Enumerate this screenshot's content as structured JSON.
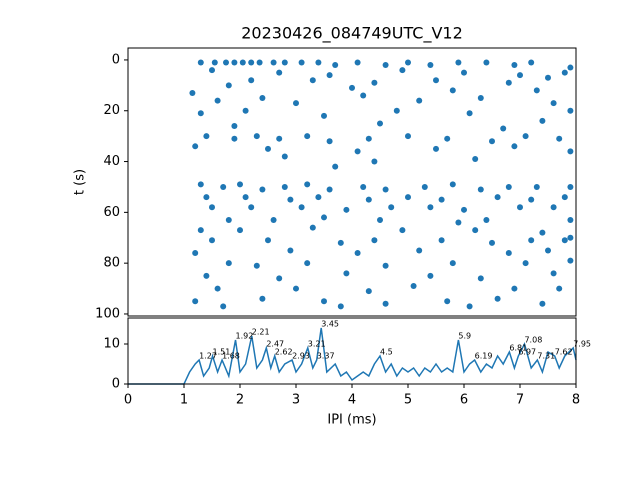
{
  "chart_data": [
    {
      "type": "scatter",
      "title": "20230426_084749UTC_V12",
      "y_label": "t (s)",
      "color": "#1f77b4",
      "xlim": [
        0,
        8
      ],
      "ylim": [
        100.8,
        -4.7
      ],
      "yticks": [
        0,
        20,
        40,
        60,
        80,
        100
      ],
      "x": [
        1.3,
        1.55,
        1.75,
        1.9,
        2.05,
        2.2,
        2.35,
        2.6,
        2.8,
        3.1,
        3.4,
        3.7,
        4.1,
        4.6,
        5.0,
        5.4,
        5.9,
        6.4,
        6.9,
        7.2,
        7.9,
        1.5,
        2.7,
        3.6,
        4.9,
        6.0,
        7.0,
        7.8,
        2.2,
        3.3,
        4.4,
        5.5,
        6.8,
        7.5,
        1.8,
        4.0,
        5.8,
        7.3,
        1.15,
        1.6,
        2.4,
        3.0,
        4.2,
        5.2,
        6.3,
        7.6,
        1.3,
        2.1,
        3.5,
        4.8,
        6.1,
        7.9,
        1.9,
        4.5,
        6.7,
        7.4,
        1.4,
        1.9,
        2.3,
        2.7,
        3.2,
        3.6,
        4.3,
        5.0,
        5.7,
        6.5,
        7.1,
        7.7,
        1.2,
        2.5,
        4.1,
        5.5,
        6.9,
        7.9,
        2.8,
        4.4,
        6.2,
        3.7,
        1.3,
        1.7,
        2.0,
        2.4,
        2.8,
        3.2,
        3.6,
        4.2,
        4.6,
        5.3,
        5.8,
        6.3,
        6.8,
        7.3,
        7.9,
        1.4,
        2.1,
        2.9,
        3.4,
        4.3,
        5.0,
        5.6,
        6.6,
        7.2,
        7.8,
        1.5,
        2.2,
        3.1,
        3.9,
        4.7,
        5.4,
        6.0,
        7.0,
        7.6,
        1.8,
        2.6,
        3.5,
        4.5,
        5.9,
        6.4,
        7.9,
        1.3,
        2.0,
        3.3,
        4.9,
        6.2,
        7.4,
        7.9,
        1.5,
        2.5,
        3.8,
        4.4,
        5.6,
        6.5,
        7.2,
        7.8,
        1.2,
        2.9,
        4.1,
        5.2,
        6.8,
        7.5,
        1.8,
        2.3,
        3.2,
        4.6,
        5.8,
        7.1,
        7.9,
        1.4,
        2.7,
        3.9,
        5.4,
        6.3,
        7.6,
        1.6,
        3.0,
        4.3,
        5.1,
        6.9,
        7.7,
        1.2,
        2.4,
        3.5,
        4.6,
        5.7,
        6.6,
        7.4,
        1.7,
        3.8,
        6.1
      ],
      "values": [
        1,
        1,
        1,
        1,
        1,
        1,
        1,
        1,
        1,
        1,
        1,
        2,
        1,
        2,
        1,
        2,
        1,
        1,
        2,
        1,
        3,
        4,
        5,
        6,
        4,
        5,
        6,
        5,
        8,
        8,
        9,
        8,
        9,
        7,
        10,
        11,
        12,
        12,
        13,
        16,
        15,
        17,
        14,
        16,
        15,
        17,
        21,
        20,
        22,
        20,
        21,
        20,
        26,
        25,
        27,
        24,
        30,
        31,
        30,
        31,
        30,
        32,
        31,
        30,
        31,
        32,
        30,
        31,
        34,
        35,
        36,
        35,
        34,
        36,
        38,
        40,
        39,
        42,
        49,
        50,
        49,
        51,
        50,
        49,
        51,
        50,
        51,
        50,
        49,
        51,
        50,
        50,
        50,
        54,
        54,
        55,
        54,
        55,
        54,
        55,
        54,
        55,
        54,
        58,
        58,
        58,
        59,
        58,
        58,
        59,
        58,
        58,
        63,
        63,
        62,
        63,
        64,
        63,
        63,
        67,
        67,
        66,
        67,
        67,
        68,
        70,
        71,
        71,
        72,
        71,
        71,
        72,
        71,
        71,
        76,
        75,
        76,
        75,
        76,
        75,
        80,
        81,
        80,
        81,
        80,
        80,
        79,
        85,
        86,
        84,
        85,
        86,
        84,
        90,
        90,
        91,
        89,
        90,
        90,
        95,
        94,
        95,
        96,
        95,
        94,
        96,
        97,
        97,
        97
      ]
    },
    {
      "type": "line",
      "x_label": "IPI (ms)",
      "color": "#1f77b4",
      "xlim": [
        0,
        8
      ],
      "xticks": [
        0,
        1,
        2,
        3,
        4,
        5,
        6,
        7,
        8
      ],
      "ylim": [
        0,
        16.5
      ],
      "yticks": [
        0,
        10
      ],
      "x": [
        0,
        1.0,
        1.1,
        1.2,
        1.27,
        1.35,
        1.45,
        1.51,
        1.6,
        1.68,
        1.8,
        1.92,
        2.0,
        2.1,
        2.21,
        2.3,
        2.4,
        2.47,
        2.55,
        2.62,
        2.7,
        2.8,
        2.93,
        3.0,
        3.1,
        3.21,
        3.3,
        3.37,
        3.45,
        3.55,
        3.7,
        3.8,
        3.9,
        4.0,
        4.1,
        4.2,
        4.3,
        4.4,
        4.5,
        4.6,
        4.7,
        4.8,
        4.9,
        5.0,
        5.1,
        5.2,
        5.3,
        5.4,
        5.5,
        5.6,
        5.7,
        5.8,
        5.9,
        6.0,
        6.1,
        6.19,
        6.3,
        6.4,
        6.5,
        6.6,
        6.7,
        6.81,
        6.9,
        6.97,
        7.08,
        7.2,
        7.31,
        7.4,
        7.5,
        7.62,
        7.7,
        7.8,
        7.95,
        8.0
      ],
      "values": [
        0,
        0,
        3,
        5,
        6,
        2,
        4,
        7,
        3,
        6,
        2,
        11,
        3,
        5,
        12,
        4,
        6,
        9,
        4,
        7,
        3,
        5,
        6,
        3,
        5,
        9,
        4,
        6,
        14,
        3,
        5,
        2,
        3,
        1,
        2,
        3,
        2,
        5,
        7,
        3,
        5,
        2,
        4,
        3,
        4,
        2,
        4,
        3,
        5,
        3,
        4,
        3,
        11,
        3,
        5,
        6,
        3,
        5,
        4,
        7,
        5,
        8,
        4,
        7,
        10,
        4,
        6,
        3,
        8,
        7,
        4,
        7,
        9,
        6
      ],
      "annotations": [
        {
          "x": 1.27,
          "y": 6
        },
        {
          "x": 1.51,
          "y": 7
        },
        {
          "x": 1.68,
          "y": 6
        },
        {
          "x": 1.92,
          "y": 11
        },
        {
          "x": 2.21,
          "y": 12
        },
        {
          "x": 2.47,
          "y": 9
        },
        {
          "x": 2.62,
          "y": 7
        },
        {
          "x": 2.93,
          "y": 6
        },
        {
          "x": 3.21,
          "y": 9
        },
        {
          "x": 3.37,
          "y": 6
        },
        {
          "x": 3.45,
          "y": 14
        },
        {
          "x": 4.5,
          "y": 7
        },
        {
          "x": 5.9,
          "y": 11
        },
        {
          "x": 6.19,
          "y": 6
        },
        {
          "x": 6.81,
          "y": 8
        },
        {
          "x": 6.97,
          "y": 7
        },
        {
          "x": 7.08,
          "y": 10
        },
        {
          "x": 7.31,
          "y": 6
        },
        {
          "x": 7.62,
          "y": 7
        },
        {
          "x": 7.95,
          "y": 9
        }
      ]
    }
  ]
}
